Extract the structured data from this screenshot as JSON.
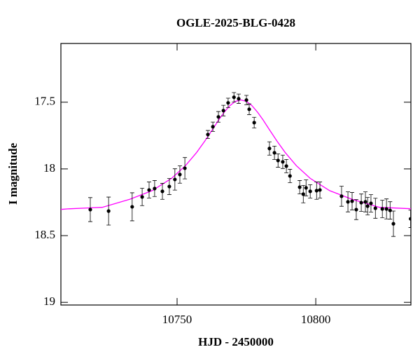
{
  "chart_data": {
    "type": "scatter",
    "title": "OGLE-2025-BLG-0428",
    "x_label": "HJD - 2450000",
    "y_label": "I magnitude",
    "xlim": [
      10708.1,
      10834.3
    ],
    "ylim": [
      19.02,
      17.06
    ],
    "xticks": [
      10750,
      10800
    ],
    "yticks": [
      17.5,
      18,
      18.5,
      19
    ],
    "series": [
      {
        "color": "#000000",
        "x": [
          10718.7,
          10725.3,
          10733.8,
          10737.4,
          10739.9,
          10741.9,
          10744.7,
          10747.2,
          10749.2,
          10751.0,
          10752.8,
          10761.1,
          10762.9,
          10764.9,
          10766.7,
          10768.4,
          10770.5,
          10772.2,
          10775.0,
          10776.0,
          10777.8,
          10783.3,
          10785.1,
          10786.4,
          10788.1,
          10789.4,
          10790.7,
          10794.2,
          10795.5,
          10796.5,
          10798.0,
          10800.3,
          10801.5,
          10809.3,
          10811.6,
          10813.1,
          10814.6,
          10816.4,
          10817.9,
          10818.7,
          10819.9,
          10821.5,
          10824.0,
          10825.5,
          10826.8,
          10828.0,
          10834.2
        ],
        "values": [
          18.305,
          18.316,
          18.284,
          18.21,
          18.158,
          18.147,
          18.168,
          18.132,
          18.079,
          18.042,
          17.995,
          17.742,
          17.684,
          17.61,
          17.563,
          17.505,
          17.463,
          17.474,
          17.484,
          17.553,
          17.653,
          17.847,
          17.879,
          17.937,
          17.947,
          17.979,
          18.053,
          18.137,
          18.189,
          18.142,
          18.168,
          18.163,
          18.158,
          18.205,
          18.247,
          18.242,
          18.305,
          18.253,
          18.247,
          18.279,
          18.258,
          18.295,
          18.3,
          18.3,
          18.311,
          18.411,
          18.374
        ],
        "errors": [
          0.09,
          0.105,
          0.105,
          0.065,
          0.06,
          0.06,
          0.06,
          0.06,
          0.08,
          0.065,
          0.08,
          0.03,
          0.035,
          0.04,
          0.04,
          0.035,
          0.035,
          0.035,
          0.035,
          0.04,
          0.04,
          0.05,
          0.05,
          0.05,
          0.05,
          0.05,
          0.05,
          0.05,
          0.065,
          0.06,
          0.05,
          0.065,
          0.06,
          0.075,
          0.075,
          0.065,
          0.075,
          0.065,
          0.075,
          0.065,
          0.065,
          0.075,
          0.065,
          0.075,
          0.065,
          0.095,
          0.065
        ]
      }
    ],
    "model": {
      "color": "#ff00ff",
      "x": [
        10708,
        10711,
        10723,
        10733,
        10741,
        10748,
        10753,
        10757,
        10760,
        10763,
        10765,
        10767,
        10769,
        10771,
        10773,
        10775,
        10777,
        10779,
        10781,
        10783,
        10786,
        10789,
        10793,
        10798,
        10805,
        10813,
        10823,
        10835
      ],
      "values": [
        18.304,
        18.299,
        18.288,
        18.227,
        18.163,
        18.071,
        17.976,
        17.878,
        17.791,
        17.697,
        17.633,
        17.575,
        17.526,
        17.494,
        17.483,
        17.494,
        17.526,
        17.575,
        17.633,
        17.697,
        17.791,
        17.878,
        17.976,
        18.071,
        18.163,
        18.227,
        18.288,
        18.299
      ]
    }
  }
}
